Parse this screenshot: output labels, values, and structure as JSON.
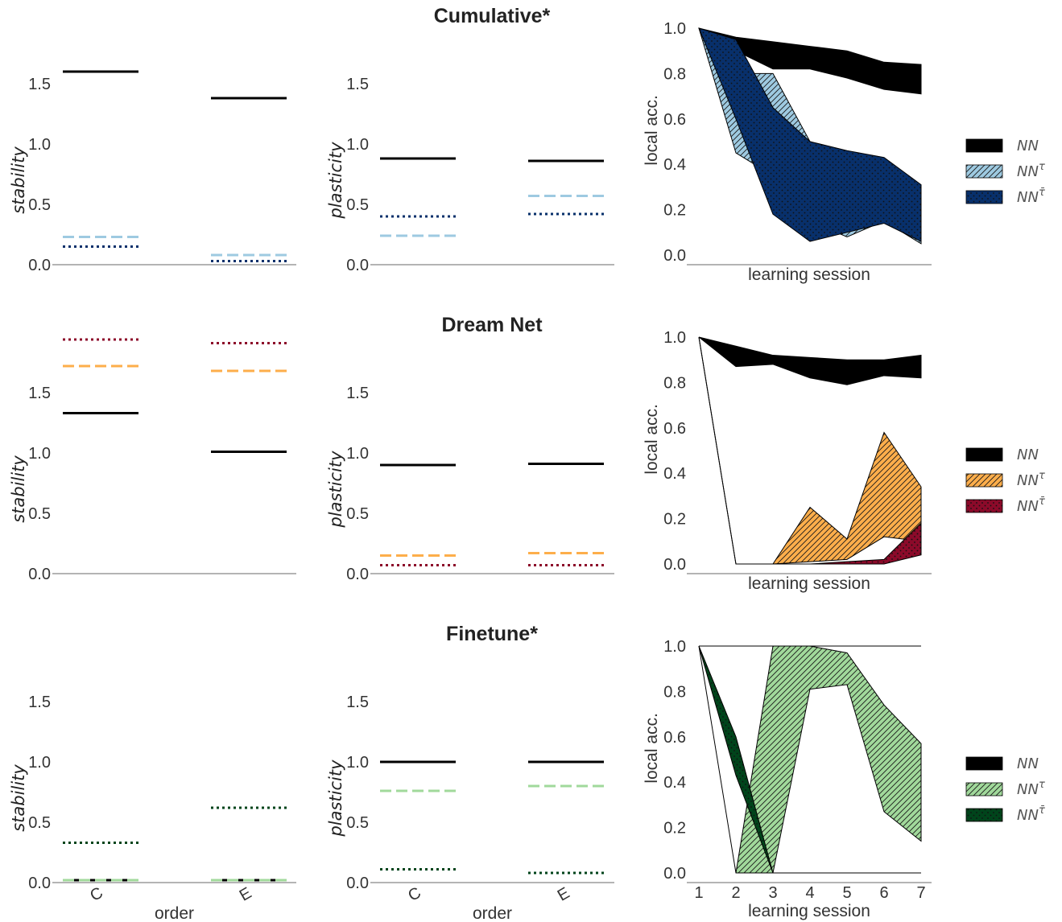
{
  "chart_data": [
    {
      "type": "line",
      "row": 0,
      "panel": "stability",
      "categories": [
        "C",
        "E"
      ],
      "ylabel": "stability",
      "xlabel": "",
      "yticks": [
        "0.0",
        "0.5",
        "1.0",
        "1.5"
      ],
      "show_xticks": false,
      "series": [
        {
          "name": "NN",
          "values": [
            1.6,
            1.38
          ],
          "color": "#000000",
          "dash": "solid"
        },
        {
          "name": "NN^τ",
          "values": [
            0.23,
            0.08
          ],
          "color": "#9ecae1",
          "dash": "dashed"
        },
        {
          "name": "NN^τ̄",
          "values": [
            0.15,
            0.03
          ],
          "color": "#08306b",
          "dash": "dotted"
        }
      ]
    },
    {
      "type": "line",
      "row": 0,
      "panel": "plasticity",
      "categories": [
        "C",
        "E"
      ],
      "ylabel": "plasticity",
      "xlabel": "",
      "yticks": [
        "0.0",
        "0.5",
        "1.0",
        "1.5"
      ],
      "show_xticks": false,
      "series": [
        {
          "name": "NN",
          "values": [
            0.88,
            0.86
          ],
          "color": "#000000",
          "dash": "solid"
        },
        {
          "name": "NN^τ",
          "values": [
            0.24,
            0.57
          ],
          "color": "#9ecae1",
          "dash": "dashed"
        },
        {
          "name": "NN^τ̄",
          "values": [
            0.4,
            0.42
          ],
          "color": "#08306b",
          "dash": "dotted"
        }
      ]
    },
    {
      "type": "area",
      "row": 0,
      "panel": "local accuracy",
      "title": "Cumulative*",
      "xlabel": "learning session",
      "ylabel": "local acc.",
      "x": [
        1,
        2,
        3,
        4,
        5,
        6,
        7
      ],
      "ylim": [
        0,
        1
      ],
      "yticks": [
        "0.0",
        "0.2",
        "0.4",
        "0.6",
        "0.8",
        "1.0"
      ],
      "show_xticks": false,
      "series": [
        {
          "name": "NN",
          "lower": [
            1.0,
            0.9,
            0.82,
            0.82,
            0.78,
            0.73,
            0.71
          ],
          "upper": [
            1.0,
            0.96,
            0.94,
            0.92,
            0.9,
            0.85,
            0.84
          ],
          "color": "#000000",
          "pattern": "solid"
        },
        {
          "name": "NN^τ",
          "lower": [
            1.0,
            0.45,
            0.35,
            0.15,
            0.08,
            0.15,
            0.05
          ],
          "upper": [
            1.0,
            0.8,
            0.8,
            0.5,
            0.45,
            0.42,
            0.3
          ],
          "color": "#9ecae1",
          "pattern": "hatch"
        },
        {
          "name": "NN^τ̄",
          "lower": [
            1.0,
            0.6,
            0.18,
            0.06,
            0.1,
            0.14,
            0.06
          ],
          "upper": [
            1.0,
            0.95,
            0.65,
            0.5,
            0.46,
            0.43,
            0.31
          ],
          "color": "#08306b",
          "pattern": "dots"
        }
      ]
    },
    {
      "type": "line",
      "row": 1,
      "panel": "stability",
      "categories": [
        "C",
        "E"
      ],
      "ylabel": "stability",
      "xlabel": "",
      "yticks": [
        "0.0",
        "0.5",
        "1.0",
        "1.5"
      ],
      "show_xticks": false,
      "series": [
        {
          "name": "NN",
          "values": [
            1.33,
            1.01
          ],
          "color": "#000000",
          "dash": "solid"
        },
        {
          "name": "NN^τ",
          "values": [
            1.72,
            1.68
          ],
          "color": "#fdae4b",
          "dash": "dashed"
        },
        {
          "name": "NN^τ̄",
          "values": [
            1.94,
            1.91
          ],
          "color": "#8c0a2a",
          "dash": "dotted"
        }
      ]
    },
    {
      "type": "line",
      "row": 1,
      "panel": "plasticity",
      "categories": [
        "C",
        "E"
      ],
      "ylabel": "plasticity",
      "xlabel": "",
      "yticks": [
        "0.0",
        "0.5",
        "1.0",
        "1.5"
      ],
      "show_xticks": false,
      "series": [
        {
          "name": "NN",
          "values": [
            0.9,
            0.91
          ],
          "color": "#000000",
          "dash": "solid"
        },
        {
          "name": "NN^τ",
          "values": [
            0.15,
            0.17
          ],
          "color": "#fdae4b",
          "dash": "dashed"
        },
        {
          "name": "NN^τ̄",
          "values": [
            0.07,
            0.07
          ],
          "color": "#8c0a2a",
          "dash": "dotted"
        }
      ]
    },
    {
      "type": "area",
      "row": 1,
      "panel": "local accuracy",
      "title": "Dream Net",
      "xlabel": "learning session",
      "ylabel": "local acc.",
      "x": [
        1,
        2,
        3,
        4,
        5,
        6,
        7
      ],
      "ylim": [
        0,
        1
      ],
      "yticks": [
        "0.0",
        "0.2",
        "0.4",
        "0.6",
        "0.8",
        "1.0"
      ],
      "show_xticks": false,
      "series": [
        {
          "name": "NN",
          "lower": [
            1.0,
            0.87,
            0.88,
            0.82,
            0.79,
            0.83,
            0.82
          ],
          "upper": [
            1.0,
            0.96,
            0.92,
            0.91,
            0.9,
            0.9,
            0.92
          ],
          "color": "#000000",
          "pattern": "solid"
        },
        {
          "name": "NN^τ",
          "lower": [
            1.0,
            0.0,
            0.0,
            0.01,
            0.02,
            0.12,
            0.1
          ],
          "upper": [
            1.0,
            0.0,
            0.0,
            0.25,
            0.11,
            0.58,
            0.34
          ],
          "color": "#fdae4b",
          "pattern": "hatch"
        },
        {
          "name": "NN^τ̄",
          "lower": [
            1.0,
            0.0,
            0.0,
            0.0,
            0.0,
            0.0,
            0.04
          ],
          "upper": [
            1.0,
            0.0,
            0.0,
            0.0,
            0.01,
            0.02,
            0.18
          ],
          "color": "#8c0a2a",
          "pattern": "dots"
        }
      ]
    },
    {
      "type": "line",
      "row": 2,
      "panel": "stability",
      "categories": [
        "C",
        "E"
      ],
      "ylabel": "stability",
      "xlabel": "order",
      "yticks": [
        "0.0",
        "0.5",
        "1.0",
        "1.5"
      ],
      "show_xticks": true,
      "series": [
        {
          "name": "NN",
          "values": [
            0.02,
            0.02
          ],
          "color": "#000000",
          "dash": "solid"
        },
        {
          "name": "NN^τ",
          "values": [
            0.02,
            0.02
          ],
          "color": "#a1d99b",
          "dash": "dashed"
        },
        {
          "name": "NN^τ̄",
          "values": [
            0.33,
            0.62
          ],
          "color": "#00441b",
          "dash": "dotted"
        }
      ]
    },
    {
      "type": "line",
      "row": 2,
      "panel": "plasticity",
      "categories": [
        "C",
        "E"
      ],
      "ylabel": "plasticity",
      "xlabel": "order",
      "yticks": [
        "0.0",
        "0.5",
        "1.0",
        "1.5"
      ],
      "show_xticks": true,
      "series": [
        {
          "name": "NN",
          "values": [
            1.0,
            1.0
          ],
          "color": "#000000",
          "dash": "solid"
        },
        {
          "name": "NN^τ",
          "values": [
            0.76,
            0.8
          ],
          "color": "#a1d99b",
          "dash": "dashed"
        },
        {
          "name": "NN^τ̄",
          "values": [
            0.11,
            0.08
          ],
          "color": "#00441b",
          "dash": "dotted"
        }
      ]
    },
    {
      "type": "area",
      "row": 2,
      "panel": "local accuracy",
      "title": "Finetune*",
      "xlabel": "learning session",
      "ylabel": "local acc.",
      "x": [
        1,
        2,
        3,
        4,
        5,
        6,
        7
      ],
      "ylim": [
        0,
        1
      ],
      "yticks": [
        "0.0",
        "0.2",
        "0.4",
        "0.6",
        "0.8",
        "1.0"
      ],
      "show_xticks": true,
      "xticks": [
        "1",
        "2",
        "3",
        "4",
        "5",
        "6",
        "7"
      ],
      "series": [
        {
          "name": "NN",
          "lower": [
            1.0,
            1.0,
            1.0,
            1.0,
            1.0,
            1.0,
            1.0
          ],
          "upper": [
            1.0,
            1.0,
            1.0,
            1.0,
            1.0,
            1.0,
            1.0
          ],
          "color": "#000000",
          "pattern": "solid"
        },
        {
          "name": "NN^τ",
          "lower": [
            1.0,
            0.0,
            0.0,
            0.81,
            0.83,
            0.27,
            0.14
          ],
          "upper": [
            1.0,
            0.0,
            1.0,
            1.0,
            0.97,
            0.74,
            0.57
          ],
          "color": "#a1d99b",
          "pattern": "hatch"
        },
        {
          "name": "NN^τ̄",
          "lower": [
            1.0,
            0.43,
            0.0,
            0.0,
            0.0,
            0.0,
            0.0
          ],
          "upper": [
            1.0,
            0.6,
            0.0,
            0.0,
            0.0,
            0.0,
            0.0
          ],
          "color": "#00441b",
          "pattern": "dots"
        }
      ]
    }
  ],
  "legends": [
    {
      "row": 0,
      "entries": [
        {
          "label": "NN",
          "sup": "",
          "color": "#000000",
          "pattern": "solid"
        },
        {
          "label": "NN",
          "sup": "τ",
          "color": "#9ecae1",
          "pattern": "hatch"
        },
        {
          "label": "NN",
          "sup": "τ̄",
          "color": "#08306b",
          "pattern": "dots"
        }
      ]
    },
    {
      "row": 1,
      "entries": [
        {
          "label": "NN",
          "sup": "",
          "color": "#000000",
          "pattern": "solid"
        },
        {
          "label": "NN",
          "sup": "τ",
          "color": "#fdae4b",
          "pattern": "hatch"
        },
        {
          "label": "NN",
          "sup": "τ̄",
          "color": "#8c0a2a",
          "pattern": "dots"
        }
      ]
    },
    {
      "row": 2,
      "entries": [
        {
          "label": "NN",
          "sup": "",
          "color": "#000000",
          "pattern": "solid"
        },
        {
          "label": "NN",
          "sup": "τ",
          "color": "#a1d99b",
          "pattern": "hatch"
        },
        {
          "label": "NN",
          "sup": "τ̄",
          "color": "#00441b",
          "pattern": "dots"
        }
      ]
    }
  ]
}
